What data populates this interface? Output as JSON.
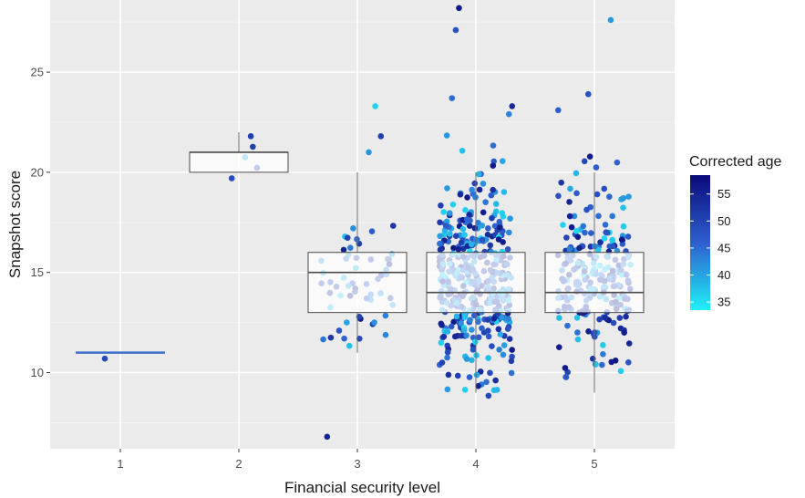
{
  "chart_data": {
    "type": "boxplot-jitter",
    "xlabel": "Financial security level",
    "ylabel": "Snapshot score",
    "categories": [
      "1",
      "2",
      "3",
      "4",
      "5"
    ],
    "ylim": [
      6.2,
      28.6
    ],
    "yticks": [
      10,
      15,
      20,
      25
    ],
    "grid": true,
    "legend": {
      "title": "Corrected age",
      "position": "right",
      "range": [
        33.5,
        58.5
      ],
      "ticks": [
        35,
        40,
        45,
        50,
        55
      ],
      "colors": {
        "low": "#1ff0f7",
        "mid": "#2f5fcf",
        "high": "#0a0a78"
      }
    },
    "boxes": [
      {
        "category": "1",
        "min": 11,
        "q1": 11,
        "median": 11,
        "q3": 11,
        "max": 11
      },
      {
        "category": "2",
        "min": 20,
        "q1": 20,
        "median": 21,
        "q3": 21,
        "max": 22
      },
      {
        "category": "3",
        "min": 11,
        "q1": 13,
        "median": 15,
        "q3": 16,
        "max": 20
      },
      {
        "category": "4",
        "min": 9,
        "q1": 13,
        "median": 14,
        "q3": 16,
        "max": 20
      },
      {
        "category": "5",
        "min": 9,
        "q1": 13,
        "median": 14,
        "q3": 16,
        "max": 20
      }
    ],
    "points_summary": [
      {
        "category": "1",
        "n": 1,
        "center": 11,
        "spread": 0,
        "ymin": 10.7,
        "ymax": 10.7,
        "outliers": []
      },
      {
        "category": "2",
        "n": 5,
        "center": 20.8,
        "spread": 0,
        "ymin": 19.7,
        "ymax": 21.8,
        "outliers": []
      },
      {
        "category": "3",
        "n": 60,
        "center": 14.8,
        "spread": 2.6,
        "ymin": 10.7,
        "ymax": 21.8,
        "outliers": [
          6.8,
          23.3,
          21.0,
          21.8
        ]
      },
      {
        "category": "4",
        "n": 420,
        "center": 14.6,
        "spread": 3.0,
        "ymin": 7.0,
        "ymax": 22.9,
        "outliers": [
          28.2,
          27.1,
          23.7,
          23.3
        ]
      },
      {
        "category": "5",
        "n": 240,
        "center": 14.5,
        "spread": 3.0,
        "ymin": 8.1,
        "ymax": 22.3,
        "outliers": [
          27.6,
          23.9,
          23.1
        ]
      }
    ]
  }
}
